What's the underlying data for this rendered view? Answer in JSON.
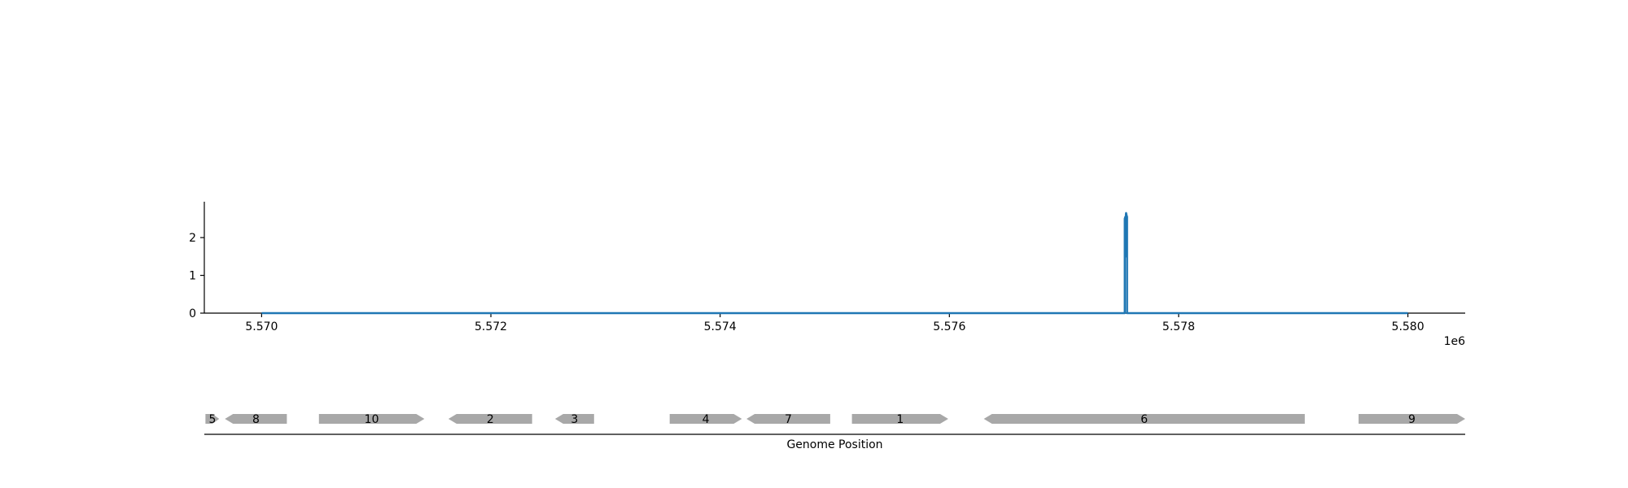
{
  "chart_data": [
    {
      "type": "line",
      "title": "",
      "xlabel": "",
      "ylabel": "",
      "x_offset_label": "1e6",
      "xlim": [
        5.5695,
        5.5805
      ],
      "ylim": [
        0,
        2.95
      ],
      "x_ticks": [
        5.57,
        5.572,
        5.574,
        5.576,
        5.578,
        5.58
      ],
      "x_tick_labels": [
        "5.570",
        "5.572",
        "5.574",
        "5.576",
        "5.578",
        "5.580"
      ],
      "y_ticks": [
        0,
        1,
        2
      ],
      "y_tick_labels": [
        "0",
        "1",
        "2"
      ],
      "grid": false,
      "line_color": "#1f77b4",
      "series": [
        {
          "x": [
            5.57,
            5.57753,
            5.57753,
            5.577535,
            5.577538,
            5.57754,
            5.577542,
            5.577545,
            5.57755,
            5.57755,
            5.58
          ],
          "y": [
            0,
            0,
            2.5,
            2.55,
            1.5,
            2.62,
            2.65,
            2.6,
            2.55,
            0,
            0
          ]
        }
      ]
    },
    {
      "type": "gene_track",
      "xlabel": "Genome Position",
      "xlim": [
        5.5695,
        5.5805
      ],
      "feature_color": "#a8a8a8",
      "features": [
        {
          "label": "5",
          "start": 5.56951,
          "end": 5.56963,
          "strand": "+"
        },
        {
          "label": "8",
          "start": 5.56968,
          "end": 5.57022,
          "strand": "-"
        },
        {
          "label": "10",
          "start": 5.5705,
          "end": 5.57142,
          "strand": "+"
        },
        {
          "label": "2",
          "start": 5.57163,
          "end": 5.57236,
          "strand": "-"
        },
        {
          "label": "3",
          "start": 5.57256,
          "end": 5.5729,
          "strand": "-"
        },
        {
          "label": "4",
          "start": 5.57356,
          "end": 5.57419,
          "strand": "+"
        },
        {
          "label": "7",
          "start": 5.57423,
          "end": 5.57496,
          "strand": "-"
        },
        {
          "label": "1",
          "start": 5.57515,
          "end": 5.57599,
          "strand": "+"
        },
        {
          "label": "6",
          "start": 5.5763,
          "end": 5.5791,
          "strand": "-"
        },
        {
          "label": "9",
          "start": 5.57957,
          "end": 5.58053,
          "strand": "+"
        }
      ]
    }
  ]
}
